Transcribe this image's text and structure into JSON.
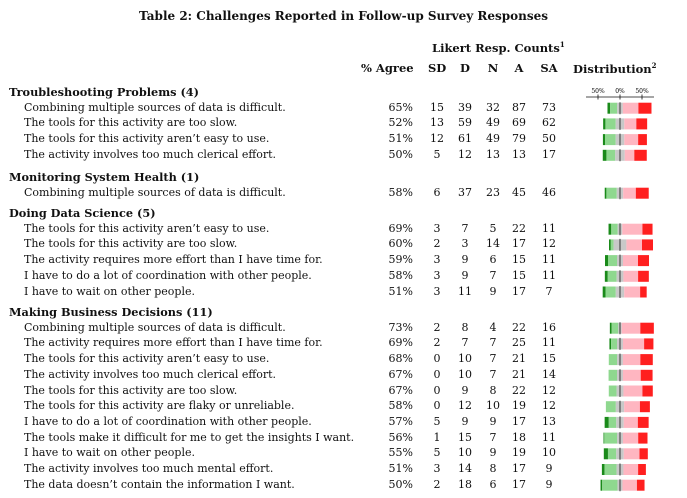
{
  "caption": "Table 2: Challenges Reported in Follow-up Survey Responses",
  "header": {
    "likert_title": "Likert Resp. Counts",
    "likert_sup": "1",
    "pct_agree": "% Agree",
    "sd": "SD",
    "d": "D",
    "n": "N",
    "a": "A",
    "sa": "SA",
    "distribution": "Distribution",
    "distribution_sup": "2",
    "scale_left": "50%",
    "scale_mid": "0%",
    "scale_right": "50%"
  },
  "colors": {
    "sd": "#1a8a1a",
    "d": "#8fd88f",
    "n": "#c8c8c8",
    "a": "#ffb6c1",
    "sa": "#ff1f1f"
  },
  "sections": [
    {
      "title": "Troubleshooting Problems (4)",
      "rows": [
        {
          "label": "Combining multiple sources of data is difficult.",
          "pct": "65%",
          "sd": 15,
          "d": 39,
          "n": 32,
          "a": 87,
          "sa": 73
        },
        {
          "label": "The tools for this activity are too slow.",
          "pct": "52%",
          "sd": 13,
          "d": 59,
          "n": 49,
          "a": 69,
          "sa": 62
        },
        {
          "label": "The tools for this activity aren’t easy to use.",
          "pct": "51%",
          "sd": 12,
          "d": 61,
          "n": 49,
          "a": 79,
          "sa": 50
        },
        {
          "label": "The activity involves too much clerical effort.",
          "pct": "50%",
          "sd": 5,
          "d": 12,
          "n": 13,
          "a": 13,
          "sa": 17
        }
      ]
    },
    {
      "title": "Monitoring System Health (1)",
      "rows": [
        {
          "label": "Combining multiple sources of data is difficult.",
          "pct": "58%",
          "sd": 6,
          "d": 37,
          "n": 23,
          "a": 45,
          "sa": 46
        }
      ]
    },
    {
      "title": "Doing Data Science (5)",
      "rows": [
        {
          "label": "The tools for this activity aren’t easy to use.",
          "pct": "69%",
          "sd": 3,
          "d": 7,
          "n": 5,
          "a": 22,
          "sa": 11
        },
        {
          "label": "The tools for this activity are too slow.",
          "pct": "60%",
          "sd": 2,
          "d": 3,
          "n": 14,
          "a": 17,
          "sa": 12
        },
        {
          "label": "The activity requires more effort than I have time for.",
          "pct": "59%",
          "sd": 3,
          "d": 9,
          "n": 6,
          "a": 15,
          "sa": 11
        },
        {
          "label": "I have to do a lot of coordination with other people.",
          "pct": "58%",
          "sd": 3,
          "d": 9,
          "n": 7,
          "a": 15,
          "sa": 11
        },
        {
          "label": "I have to wait on other people.",
          "pct": "51%",
          "sd": 3,
          "d": 11,
          "n": 9,
          "a": 17,
          "sa": 7
        }
      ]
    },
    {
      "title": "Making Business Decisions (11)",
      "rows": [
        {
          "label": "Combining multiple sources of data is difficult.",
          "pct": "73%",
          "sd": 2,
          "d": 8,
          "n": 4,
          "a": 22,
          "sa": 16
        },
        {
          "label": "The activity requires more effort than I have time for.",
          "pct": "69%",
          "sd": 2,
          "d": 7,
          "n": 7,
          "a": 25,
          "sa": 11
        },
        {
          "label": "The tools for this activity aren’t easy to use.",
          "pct": "68%",
          "sd": 0,
          "d": 10,
          "n": 7,
          "a": 21,
          "sa": 15
        },
        {
          "label": "The activity involves too much clerical effort.",
          "pct": "67%",
          "sd": 0,
          "d": 10,
          "n": 7,
          "a": 21,
          "sa": 14
        },
        {
          "label": "The tools for this activity are too slow.",
          "pct": "67%",
          "sd": 0,
          "d": 9,
          "n": 8,
          "a": 22,
          "sa": 12
        },
        {
          "label": "The tools for this activity are flaky or unreliable.",
          "pct": "58%",
          "sd": 0,
          "d": 12,
          "n": 10,
          "a": 19,
          "sa": 12
        },
        {
          "label": "I have to do a lot of coordination with other people.",
          "pct": "57%",
          "sd": 5,
          "d": 9,
          "n": 9,
          "a": 17,
          "sa": 13
        },
        {
          "label": "The tools make it difficult for me to get the insights I want.",
          "pct": "56%",
          "sd": 1,
          "d": 15,
          "n": 7,
          "a": 18,
          "sa": 11
        },
        {
          "label": "I have to wait on other people.",
          "pct": "55%",
          "sd": 5,
          "d": 10,
          "n": 9,
          "a": 19,
          "sa": 10
        },
        {
          "label": "The activity involves too much mental effort.",
          "pct": "51%",
          "sd": 3,
          "d": 14,
          "n": 8,
          "a": 17,
          "sa": 9
        },
        {
          "label": "The data doesn’t contain the information I want.",
          "pct": "50%",
          "sd": 2,
          "d": 18,
          "n": 6,
          "a": 17,
          "sa": 9
        }
      ]
    }
  ]
}
